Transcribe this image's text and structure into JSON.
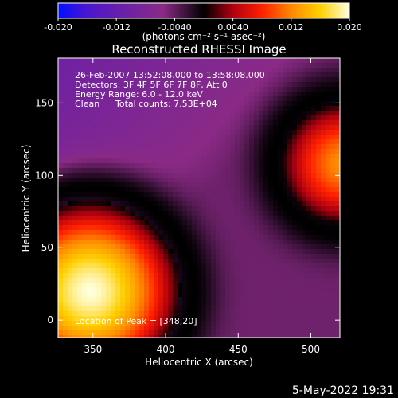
{
  "colorbar": {
    "ticks": [
      "-0.020",
      "-0.012",
      "-0.0040",
      "0.0040",
      "0.012",
      "0.020"
    ],
    "tick_values": [
      -0.02,
      -0.012,
      -0.004,
      0.004,
      0.012,
      0.02
    ],
    "range": [
      -0.02,
      0.02
    ],
    "units": "(photons cm⁻² s⁻¹ asec⁻²)",
    "colors": [
      "#0010ff",
      "#4a16d0",
      "#6a20a8",
      "#8a2a86",
      "#000000",
      "#b00010",
      "#ff2000",
      "#ff8800",
      "#ffd000",
      "#ffffe0"
    ]
  },
  "chart_data": {
    "type": "heatmap",
    "title": "Reconstructed RHESSI Image",
    "xlabel": "Heliocentric X (arcsec)",
    "ylabel": "Heliocentric Y (arcsec)",
    "xlim": [
      326,
      520
    ],
    "ylim": [
      -12,
      181
    ],
    "xticks": [
      350,
      400,
      450,
      500
    ],
    "yticks": [
      0,
      50,
      100,
      150
    ],
    "grid": false,
    "annotations": [
      "26-Feb-2007 13:52:08.000 to 13:58:08.000",
      "Detectors: 3F 4F 5F 6F 7F 8F, Att 0",
      "Energy Range: 6.0 - 12.0 keV",
      "Clean",
      "Total counts: 7.53E+04",
      "Location of Peak = [348,20]"
    ],
    "sources": [
      {
        "kind": "peak",
        "x": 348,
        "y": 20,
        "value": 0.02,
        "radius": 62
      },
      {
        "kind": "secondary",
        "x": 522,
        "y": 108,
        "value": 0.0125,
        "radius": 42
      }
    ],
    "background": {
      "value": -0.0045,
      "dark_ring_value": 0.0
    }
  },
  "timestamp": "5-May-2022 19:31"
}
